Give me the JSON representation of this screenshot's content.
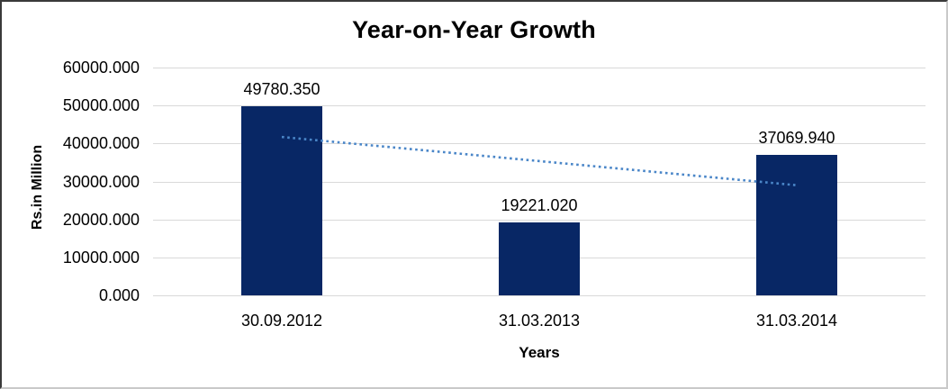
{
  "chart_data": {
    "type": "bar",
    "title": "Year-on-Year Growth",
    "xlabel": "Years",
    "ylabel": "Rs.in Million",
    "categories": [
      "30.09.2012",
      "31.03.2013",
      "31.03.2014"
    ],
    "values": [
      49780.35,
      19221.02,
      37069.94
    ],
    "value_labels": [
      "49780.350",
      "19221.020",
      "37069.940"
    ],
    "ylim": [
      0,
      60000
    ],
    "yticks": [
      {
        "value": 60000,
        "label": "60000.000"
      },
      {
        "value": 50000,
        "label": "50000.000"
      },
      {
        "value": 40000,
        "label": "40000.000"
      },
      {
        "value": 30000,
        "label": "30000.000"
      },
      {
        "value": 20000,
        "label": "20000.000"
      },
      {
        "value": 10000,
        "label": "10000.000"
      },
      {
        "value": 0,
        "label": "0.000"
      }
    ],
    "grid": true,
    "legend": false,
    "trendline": {
      "style": "dotted-linear",
      "start_value": 41712.3,
      "end_value": 29001.9
    },
    "colors": {
      "bar": "#082765",
      "trendline": "#4a86c8",
      "gridline": "#d9d9d9",
      "text": "#000000"
    }
  }
}
